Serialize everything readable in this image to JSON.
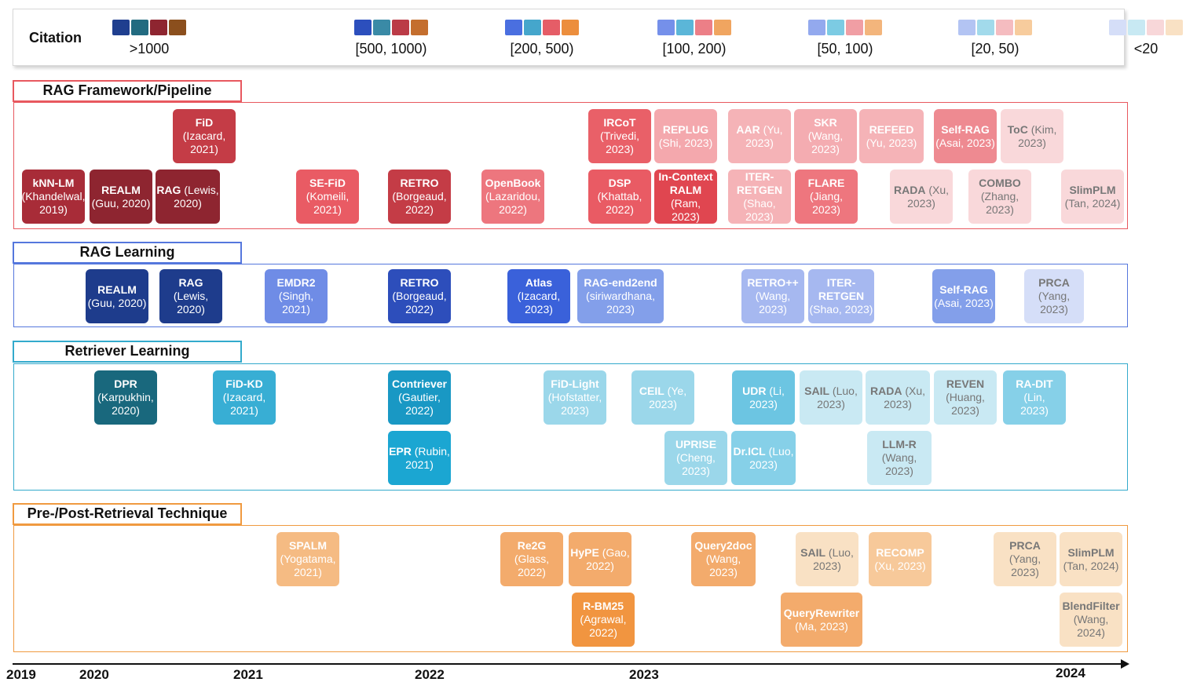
{
  "legend": {
    "title": "Citation",
    "groups": [
      {
        "label": ">1000",
        "colors": [
          "#1f3f8f",
          "#226b80",
          "#8e2530",
          "#8b4f1d"
        ]
      },
      {
        "label": "[500, 1000)",
        "colors": [
          "#2c4fbd",
          "#3a8aa6",
          "#bb3b47",
          "#c46e2e"
        ]
      },
      {
        "label": "[200, 500)",
        "colors": [
          "#4a6fe0",
          "#45a6cc",
          "#e55d67",
          "#ec8e3d"
        ]
      },
      {
        "label": "[100, 200)",
        "colors": [
          "#7590ea",
          "#5bb6d8",
          "#ec7f87",
          "#f0a560"
        ]
      },
      {
        "label": "[50, 100)",
        "colors": [
          "#93a9ee",
          "#7ccbe3",
          "#f09ea4",
          "#f3b57c"
        ]
      },
      {
        "label": "[20, 50)",
        "colors": [
          "#b3c4f3",
          "#a2daeb",
          "#f5bcc0",
          "#f7cc9d"
        ]
      },
      {
        "label": "<20",
        "colors": [
          "#d5def8",
          "#c8e9f3",
          "#f8d7d9",
          "#f9e1c4"
        ]
      }
    ]
  },
  "sections": [
    {
      "title": "RAG Framework/Pipeline",
      "border": "#e8585f",
      "boxes": [
        {
          "bold": "FiD",
          "rest": "(Izacard,\n2021)",
          "color": "#c43c46",
          "text": "#ffffff"
        },
        {
          "bold": "kNN-LM",
          "rest": "(Khandelwal,\n2019)",
          "color": "#a82c38",
          "text": "#ffffff"
        },
        {
          "bold": "REALM",
          "rest": "(Guu, 2020)",
          "color": "#8e2530",
          "text": "#ffffff"
        },
        {
          "bold": "RAG",
          "rest": "(Lewis,\n2020)",
          "color": "#8e2530",
          "text": "#ffffff"
        },
        {
          "bold": "SE-FiD",
          "rest": "(Komeili,\n2021)",
          "color": "#e95b64",
          "text": "#ffffff"
        },
        {
          "bold": "RETRO",
          "rest": "(Borgeaud,\n2022)",
          "color": "#c43c46",
          "text": "#ffffff"
        },
        {
          "bold": "OpenBook",
          "rest": "(Lazaridou,\n2022)",
          "color": "#ed767e",
          "text": "#ffffff"
        },
        {
          "bold": "IRCoT",
          "rest": "(Trivedi,\n2023)",
          "color": "#e96068",
          "text": "#ffffff"
        },
        {
          "bold": "REPLUG",
          "rest": "(Shi, 2023)",
          "color": "#f4a8ad",
          "text": "#ffffff"
        },
        {
          "bold": "AAR",
          "rest": "(Yu,\n2023)",
          "color": "#f5b3b7",
          "text": "#ffffff"
        },
        {
          "bold": "SKR",
          "rest": "(Wang,\n2023)",
          "color": "#f4acb1",
          "text": "#ffffff"
        },
        {
          "bold": "REFEED",
          "rest": "(Yu, 2023)",
          "color": "#f5b3b7",
          "text": "#ffffff"
        },
        {
          "bold": "Self-RAG",
          "rest": "(Asai, 2023)",
          "color": "#ee8a91",
          "text": "#ffffff"
        },
        {
          "bold": "ToC",
          "rest": "(Kim,\n2023)",
          "color": "#f9d8da",
          "text": "#777777"
        },
        {
          "bold": "DSP",
          "rest": "(Khattab,\n2022)",
          "color": "#e95b64",
          "text": "#ffffff"
        },
        {
          "bold": "In-Context\nRALM",
          "rest": "(Ram,\n2023)",
          "color": "#e04650",
          "text": "#ffffff"
        },
        {
          "bold": "ITER-\nRETGEN",
          "rest": "(Shao,\n2023)",
          "color": "#f5b3b7",
          "text": "#ffffff"
        },
        {
          "bold": "FLARE",
          "rest": "(Jiang,\n2023)",
          "color": "#ee767e",
          "text": "#ffffff"
        },
        {
          "bold": "RADA",
          "rest": "(Xu,\n2023)",
          "color": "#f9d8da",
          "text": "#777777"
        },
        {
          "bold": "COMBO",
          "rest": "(Zhang,\n2023)",
          "color": "#f9d8da",
          "text": "#777777"
        },
        {
          "bold": "SlimPLM",
          "rest": "(Tan, 2024)",
          "color": "#f9d8da",
          "text": "#777777"
        }
      ]
    },
    {
      "title": "RAG Learning",
      "border": "#5577dd",
      "boxes": [
        {
          "bold": "REALM",
          "rest": "(Guu, 2020)",
          "color": "#1e3c8c",
          "text": "#ffffff"
        },
        {
          "bold": "RAG",
          "rest": "(Lewis,\n2020)",
          "color": "#1e3c8c",
          "text": "#ffffff"
        },
        {
          "bold": "EMDR2",
          "rest": "(Singh,\n2021)",
          "color": "#6f8ce6",
          "text": "#ffffff"
        },
        {
          "bold": "RETRO",
          "rest": "(Borgeaud,\n2022)",
          "color": "#2d4ebb",
          "text": "#ffffff"
        },
        {
          "bold": "Atlas",
          "rest": "(Izacard,\n2023)",
          "color": "#3a61da",
          "text": "#ffffff"
        },
        {
          "bold": "RAG-end2end",
          "rest": "(siriwardhana,\n2023)",
          "color": "#839fea",
          "text": "#ffffff"
        },
        {
          "bold": "RETRO++",
          "rest": "(Wang,\n2023)",
          "color": "#a6b8f0",
          "text": "#ffffff"
        },
        {
          "bold": "ITER-\nRETGEN",
          "rest": "(Shao, 2023)",
          "color": "#a6b8f0",
          "text": "#ffffff"
        },
        {
          "bold": "Self-RAG",
          "rest": "(Asai, 2023)",
          "color": "#839fea",
          "text": "#ffffff"
        },
        {
          "bold": "PRCA",
          "rest": "(Yang,\n2023)",
          "color": "#d5def8",
          "text": "#777777"
        }
      ]
    },
    {
      "title": "Retriever Learning",
      "border": "#33aacc",
      "boxes": [
        {
          "bold": "DPR",
          "rest": "(Karpukhin,\n2020)",
          "color": "#19687d",
          "text": "#ffffff"
        },
        {
          "bold": "FiD-KD",
          "rest": "(Izacard,\n2021)",
          "color": "#38aed4",
          "text": "#ffffff"
        },
        {
          "bold": "Contriever",
          "rest": "(Gautier,\n2022)",
          "color": "#1998c4",
          "text": "#ffffff"
        },
        {
          "bold": "FiD-Light",
          "rest": "(Hofstatter,\n2023)",
          "color": "#9bd7ea",
          "text": "#ffffff"
        },
        {
          "bold": "CEIL",
          "rest": "(Ye,\n2023)",
          "color": "#9bd7ea",
          "text": "#ffffff"
        },
        {
          "bold": "UDR",
          "rest": "(Li,\n2023)",
          "color": "#6cc5e2",
          "text": "#ffffff"
        },
        {
          "bold": "SAIL",
          "rest": "(Luo,\n2023)",
          "color": "#c9e9f3",
          "text": "#777777"
        },
        {
          "bold": "RADA",
          "rest": "(Xu,\n2023)",
          "color": "#c9e9f3",
          "text": "#777777"
        },
        {
          "bold": "REVEN",
          "rest": "(Huang,\n2023)",
          "color": "#c9e9f3",
          "text": "#777777"
        },
        {
          "bold": "RA-DIT",
          "rest": "(Lin,\n2023)",
          "color": "#86d0e8",
          "text": "#ffffff"
        },
        {
          "bold": "EPR",
          "rest": "(Rubin,\n2021)",
          "color": "#1ba6d2",
          "text": "#ffffff"
        },
        {
          "bold": "UPRISE",
          "rest": "(Cheng,\n2023)",
          "color": "#9bd7ea",
          "text": "#ffffff"
        },
        {
          "bold": "Dr.ICL",
          "rest": "(Luo,\n2023)",
          "color": "#86d0e8",
          "text": "#ffffff"
        },
        {
          "bold": "LLM-R",
          "rest": "(Wang,\n2023)",
          "color": "#c9e9f3",
          "text": "#777777"
        }
      ]
    },
    {
      "title": "Pre-/Post-Retrieval Technique",
      "border": "#f09a40",
      "boxes": [
        {
          "bold": "SPALM",
          "rest": "(Yogatama,\n2021)",
          "color": "#f5bb83",
          "text": "#ffffff"
        },
        {
          "bold": "Re2G",
          "rest": "(Glass,\n2022)",
          "color": "#f3ab6c",
          "text": "#ffffff"
        },
        {
          "bold": "HyPE",
          "rest": "(Gao,\n2022)",
          "color": "#f3ab6c",
          "text": "#ffffff"
        },
        {
          "bold": "Query2doc",
          "rest": "(Wang,\n2023)",
          "color": "#f3ab6c",
          "text": "#ffffff"
        },
        {
          "bold": "SAIL",
          "rest": "(Luo,\n2023)",
          "color": "#f9e1c4",
          "text": "#777777"
        },
        {
          "bold": "RECOMP",
          "rest": "(Xu, 2023)",
          "color": "#f7c99a",
          "text": "#ffffff"
        },
        {
          "bold": "PRCA",
          "rest": "(Yang,\n2023)",
          "color": "#f9e1c4",
          "text": "#777777"
        },
        {
          "bold": "SlimPLM",
          "rest": "(Tan, 2024)",
          "color": "#f9e1c4",
          "text": "#777777"
        },
        {
          "bold": "R-BM25",
          "rest": "(Agrawal,\n2022)",
          "color": "#f19540",
          "text": "#ffffff"
        },
        {
          "bold": "QueryRewriter",
          "rest": "(Ma, 2023)",
          "color": "#f3ab6c",
          "text": "#ffffff"
        },
        {
          "bold": "BlendFilter",
          "rest": "(Wang,\n2024)",
          "color": "#f9e1c4",
          "text": "#777777"
        }
      ]
    }
  ],
  "axis": {
    "years": [
      "2019",
      "2020",
      "2021",
      "2022",
      "2023",
      "2024"
    ]
  }
}
